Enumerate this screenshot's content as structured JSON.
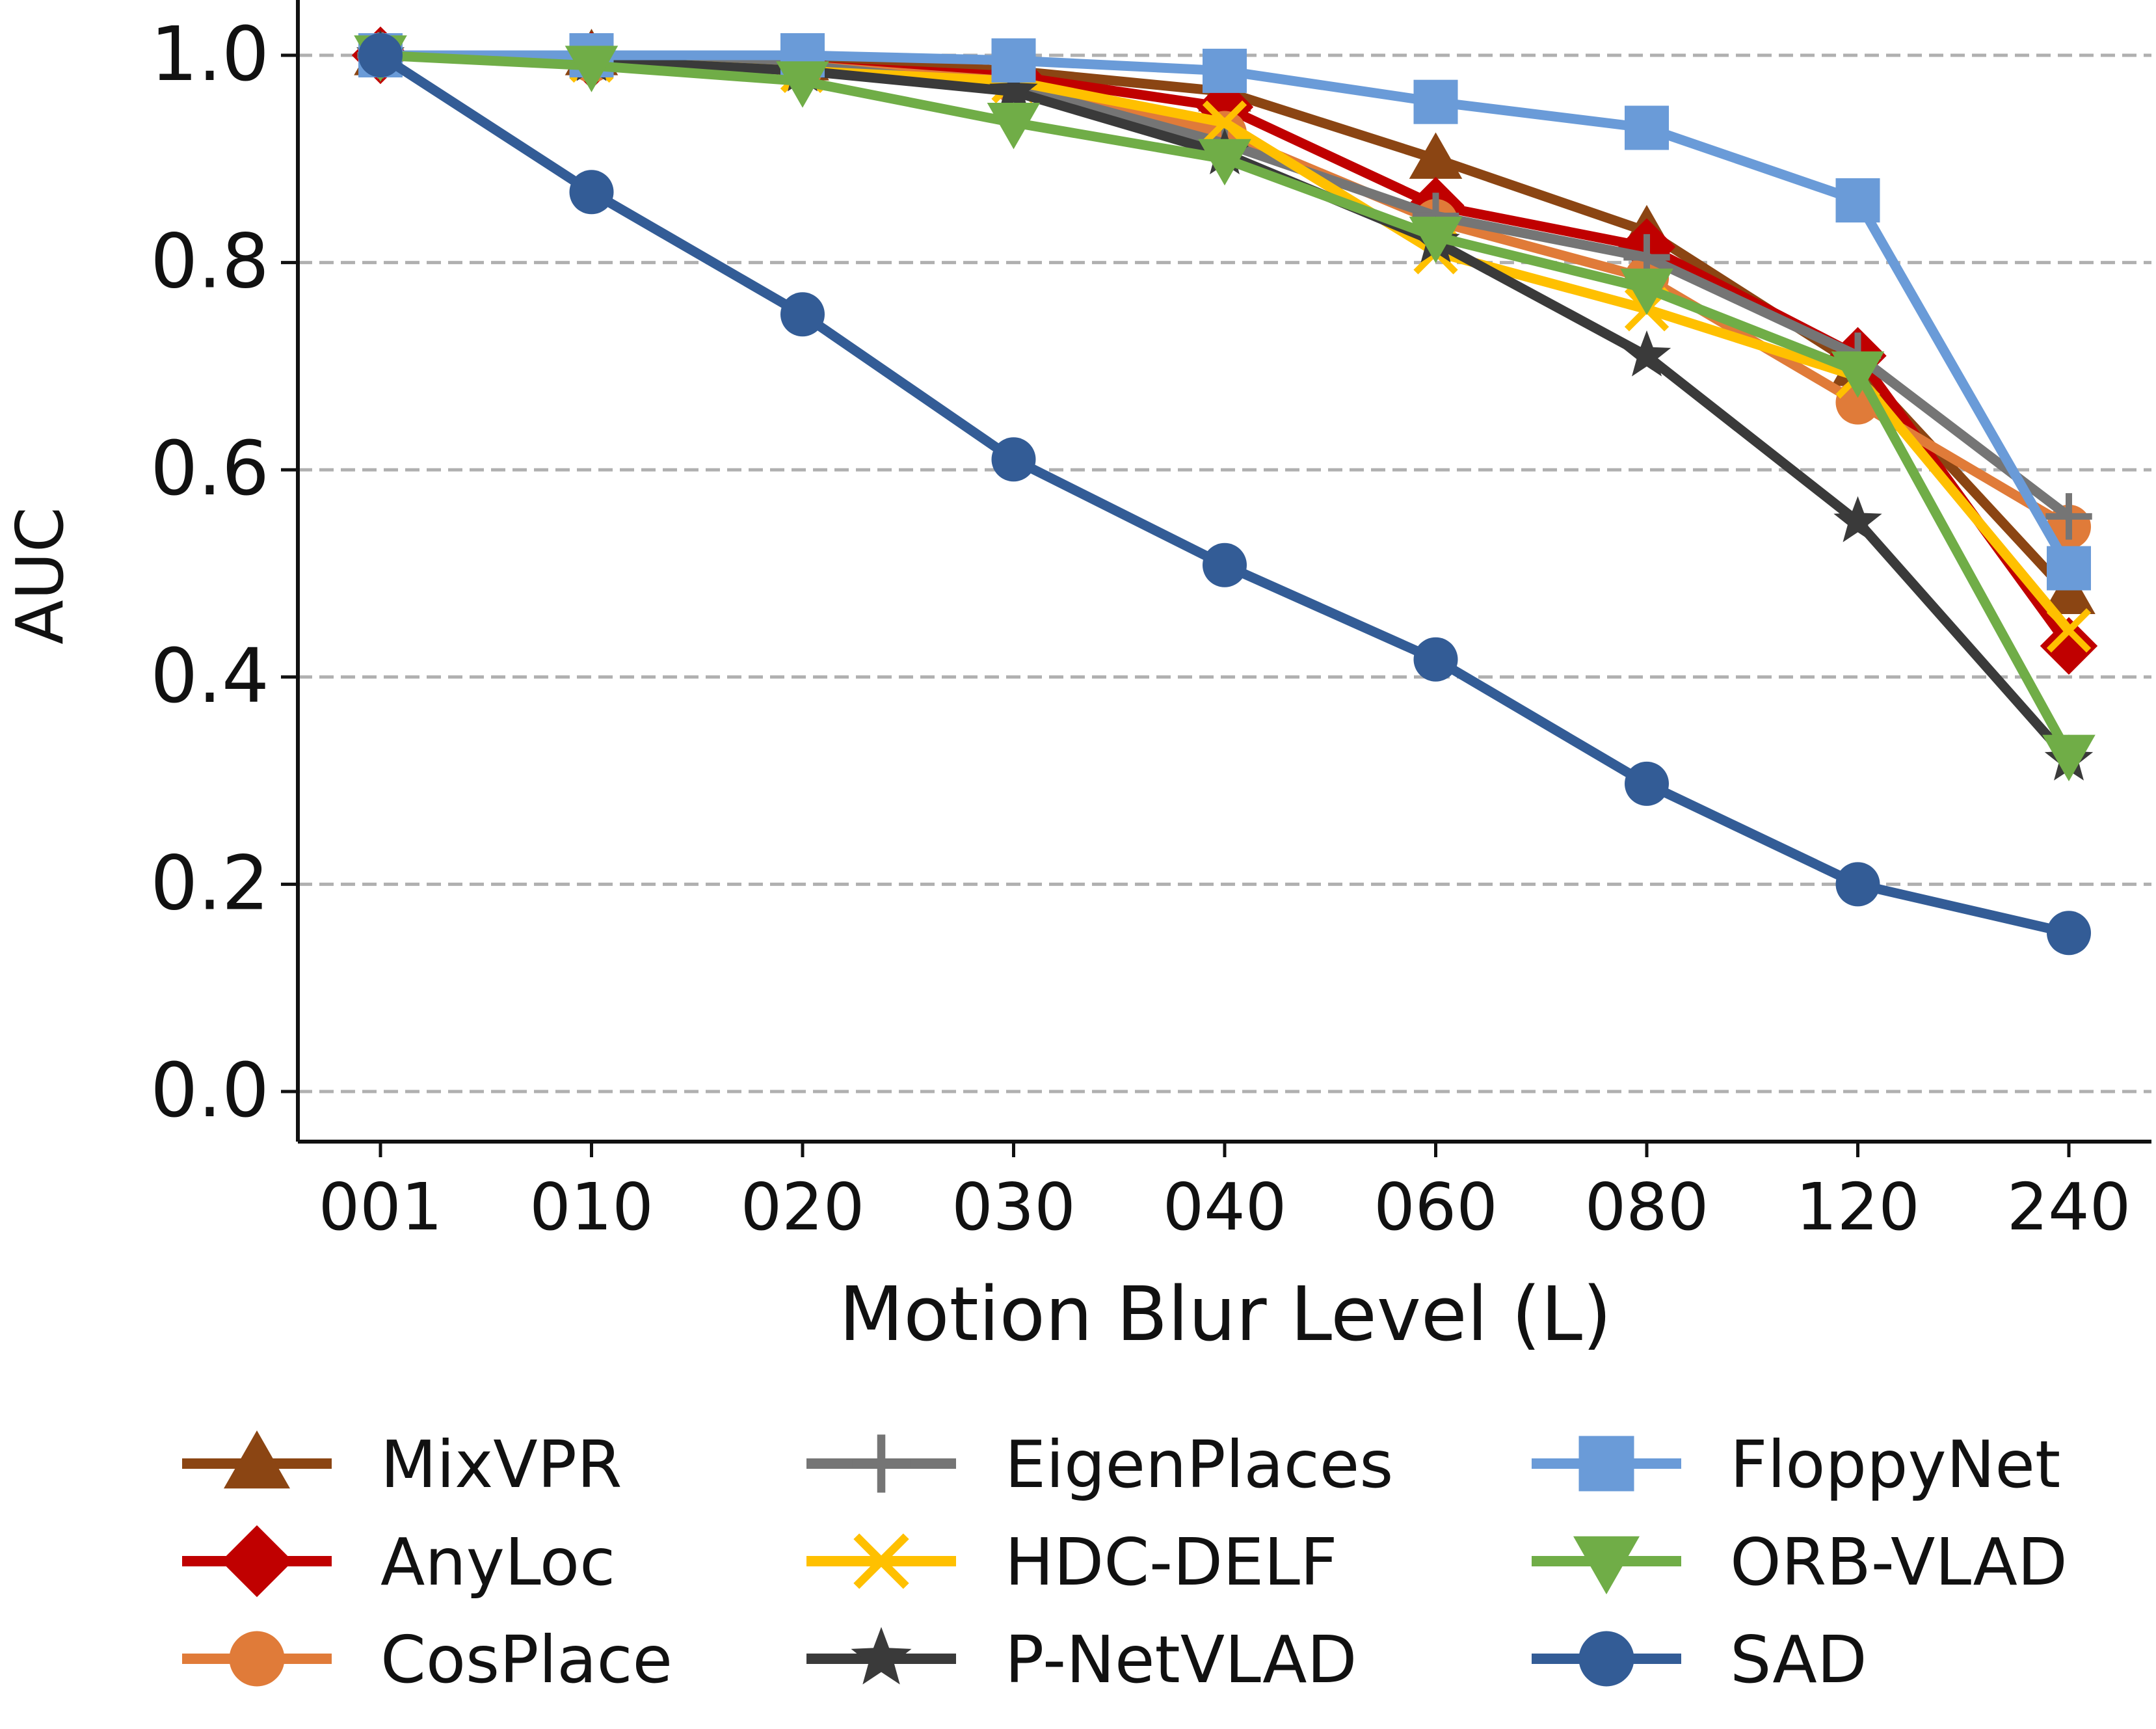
{
  "chart_data": {
    "type": "line",
    "title": "",
    "xlabel": "Motion Blur Level (L)",
    "ylabel": "AUC",
    "categories": [
      "001",
      "010",
      "020",
      "030",
      "040",
      "060",
      "080",
      "120",
      "240"
    ],
    "ylim": [
      -0.05,
      1.05
    ],
    "yticks": [
      "0.0",
      "0.2",
      "0.4",
      "0.6",
      "0.8",
      "1.0"
    ],
    "grid": "horizontal dashed",
    "legend_position": "bottom",
    "series": [
      {
        "name": "MixVPR",
        "color": "#8B4513",
        "marker": "triangle-up",
        "values": [
          1.0,
          1.0,
          0.995,
          0.985,
          0.965,
          0.9,
          0.83,
          0.7,
          0.48
        ]
      },
      {
        "name": "AnyLoc",
        "color": "#C00000",
        "marker": "diamond",
        "values": [
          1.0,
          0.995,
          0.99,
          0.98,
          0.95,
          0.855,
          0.815,
          0.71,
          0.43
        ]
      },
      {
        "name": "CosPlace",
        "color": "#E07B39",
        "marker": "circle",
        "values": [
          1.0,
          0.995,
          0.99,
          0.975,
          0.925,
          0.84,
          0.785,
          0.665,
          0.545
        ]
      },
      {
        "name": "EigenPlaces",
        "color": "#757575",
        "marker": "plus",
        "values": [
          1.0,
          0.995,
          0.99,
          0.97,
          0.915,
          0.845,
          0.805,
          0.71,
          0.555
        ]
      },
      {
        "name": "HDC-DELF",
        "color": "#FFC000",
        "marker": "x",
        "values": [
          1.0,
          0.995,
          0.985,
          0.975,
          0.935,
          0.81,
          0.755,
          0.69,
          0.445
        ]
      },
      {
        "name": "P-NetVLAD",
        "color": "#3A3A3A",
        "marker": "star",
        "values": [
          1.0,
          0.995,
          0.985,
          0.965,
          0.905,
          0.82,
          0.71,
          0.55,
          0.32
        ]
      },
      {
        "name": "FloppyNet",
        "color": "#6A9BD8",
        "marker": "square",
        "values": [
          1.0,
          1.0,
          1.0,
          0.995,
          0.985,
          0.955,
          0.93,
          0.86,
          0.505
        ]
      },
      {
        "name": "ORB-VLAD",
        "color": "#70AD47",
        "marker": "triangle-down",
        "values": [
          1.0,
          0.99,
          0.975,
          0.935,
          0.9,
          0.825,
          0.775,
          0.695,
          0.325
        ]
      },
      {
        "name": "SAD",
        "color": "#335C96",
        "marker": "circle",
        "values": [
          1.0,
          0.868,
          0.75,
          0.61,
          0.508,
          0.417,
          0.297,
          0.2,
          0.153
        ]
      }
    ]
  }
}
